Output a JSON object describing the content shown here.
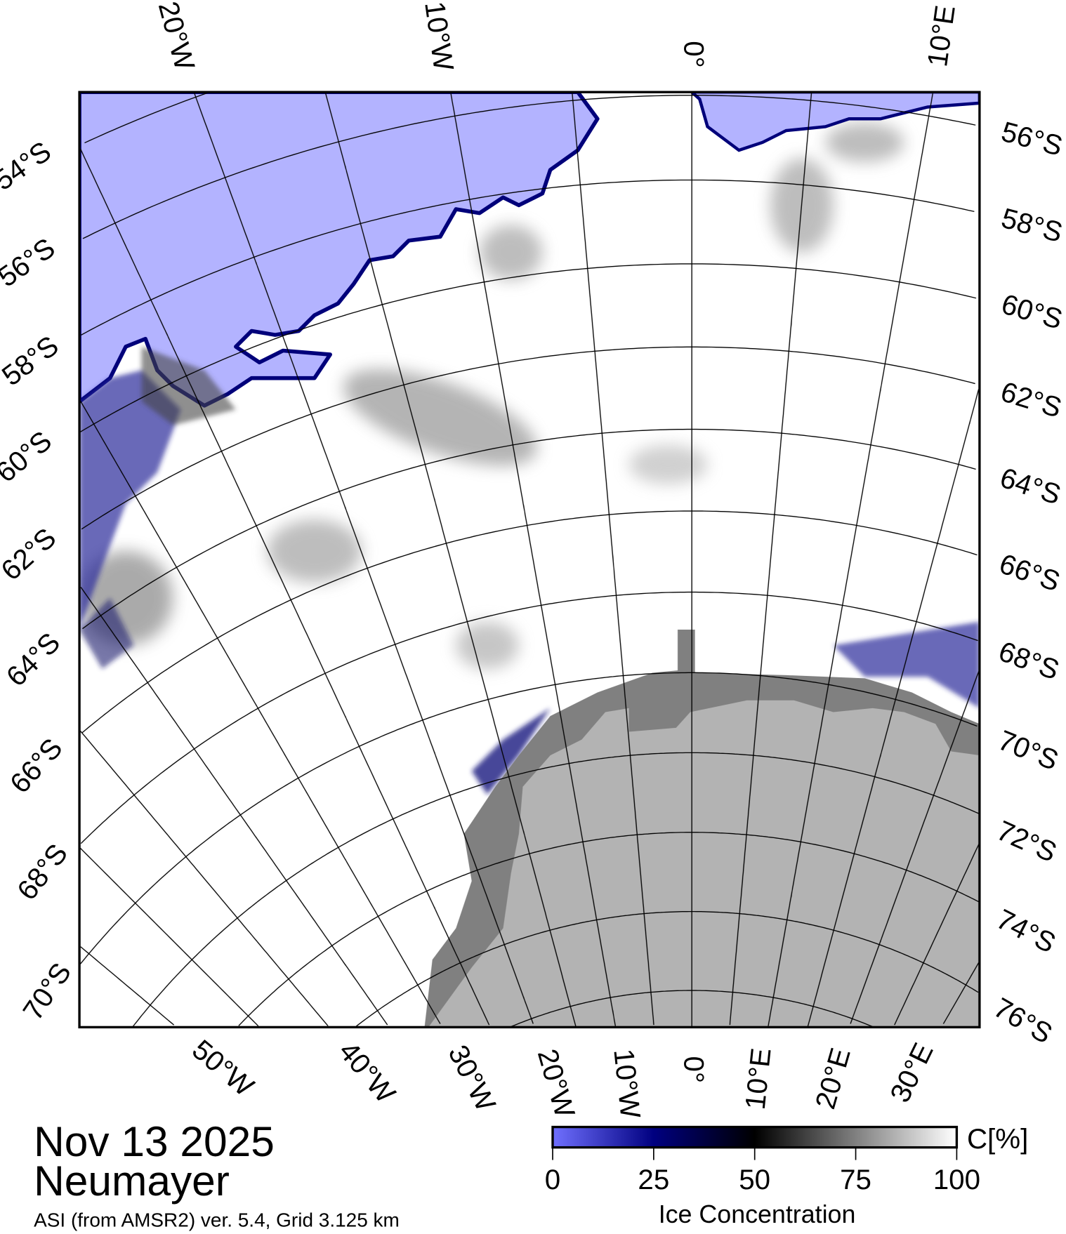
{
  "title": {
    "date": "Nov 13 2025",
    "station": "Neumayer",
    "source": "ASI (from AMSR2) ver. 5.4,  Grid 3.125 km"
  },
  "colorbar": {
    "unit": "C[%]",
    "label": "Ice Concentration",
    "ticks": [
      "0",
      "25",
      "50",
      "75",
      "100"
    ],
    "colors": [
      "#7070ff",
      "#000080",
      "#000000",
      "#808080",
      "#ffffff"
    ]
  },
  "map": {
    "colors": {
      "ocean": "#b3b3ff",
      "ice": "#ffffff",
      "land": "#b3b3b3",
      "ice_shelf": "#808080",
      "graticule": "#000000"
    },
    "top_labels": [
      "20°W",
      "10°W",
      "0°",
      "10°E"
    ],
    "bottom_labels": [
      "50°W",
      "40°W",
      "30°W",
      "20°W",
      "10°W",
      "0°",
      "10°E",
      "20°E",
      "30°E"
    ],
    "left_labels": [
      "54°S",
      "56°S",
      "58°S",
      "60°S",
      "62°S",
      "64°S",
      "66°S",
      "68°S",
      "70°S"
    ],
    "right_labels": [
      "56°S",
      "58°S",
      "60°S",
      "62°S",
      "64°S",
      "66°S",
      "68°S",
      "70°S",
      "72°S",
      "74°S",
      "76°S"
    ],
    "meridian_step_deg": 5,
    "parallel_step_deg": 2
  }
}
